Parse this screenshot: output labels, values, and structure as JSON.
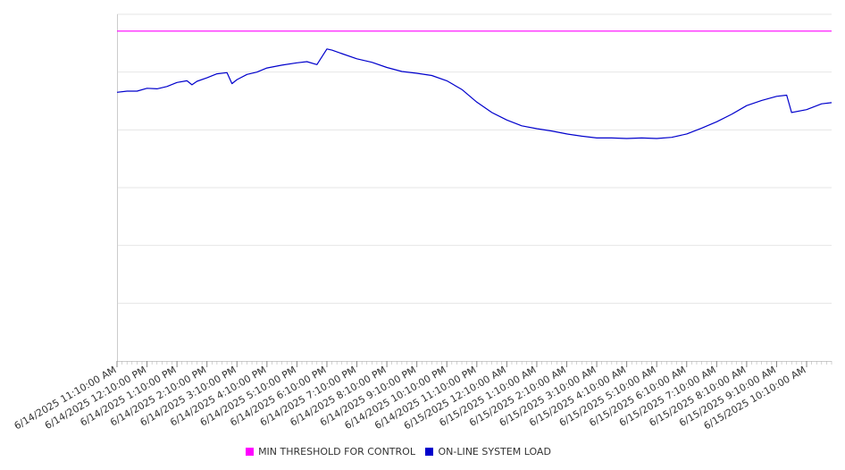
{
  "chart_data": {
    "type": "line",
    "title": "",
    "xlabel": "",
    "ylabel": "",
    "grid": true,
    "legend_position": "bottom-center",
    "x_tick_labels": [
      "6/14/2025 11:10:00 AM",
      "6/14/2025 12:10:00 PM",
      "6/14/2025 1:10:00 PM",
      "6/14/2025 2:10:00 PM",
      "6/14/2025 3:10:00 PM",
      "6/14/2025 4:10:00 PM",
      "6/14/2025 5:10:00 PM",
      "6/14/2025 6:10:00 PM",
      "6/14/2025 7:10:00 PM",
      "6/14/2025 8:10:00 PM",
      "6/14/2025 9:10:00 PM",
      "6/14/2025 10:10:00 PM",
      "6/14/2025 11:10:00 PM",
      "6/15/2025 12:10:00 AM",
      "6/15/2025 1:10:00 AM",
      "6/15/2025 2:10:00 AM",
      "6/15/2025 3:10:00 AM",
      "6/15/2025 4:10:00 AM",
      "6/15/2025 5:10:00 AM",
      "6/15/2025 6:10:00 AM",
      "6/15/2025 7:10:00 AM",
      "6/15/2025 8:10:00 AM",
      "6/15/2025 9:10:00 AM",
      "6/15/2025 10:10:00 AM"
    ],
    "x_range": [
      "6/14/2025 11:10:00 AM",
      "6/15/2025 11:00:00 AM"
    ],
    "y_range": [
      0,
      6
    ],
    "series": [
      {
        "name": "MIN THRESHOLD FOR CONTROL",
        "color": "#ff00ff",
        "x": [
          "6/14/2025 11:10:00 AM",
          "6/15/2025 11:00:00 AM"
        ],
        "y": [
          5.71,
          5.71
        ]
      },
      {
        "name": "ON-LINE SYSTEM LOAD",
        "color": "#0000cc",
        "x": [
          "6/14/2025 11:10:00 AM",
          "6/14/2025 11:30:00 AM",
          "6/14/2025 11:50:00 AM",
          "6/14/2025 12:10:00 PM",
          "6/14/2025 12:30:00 PM",
          "6/14/2025 12:50:00 PM",
          "6/14/2025 1:10:00 PM",
          "6/14/2025 1:30:00 PM",
          "6/14/2025 1:40:00 PM",
          "6/14/2025 1:50:00 PM",
          "6/14/2025 2:10:00 PM",
          "6/14/2025 2:30:00 PM",
          "6/14/2025 2:50:00 PM",
          "6/14/2025 3:00:00 PM",
          "6/14/2025 3:10:00 PM",
          "6/14/2025 3:30:00 PM",
          "6/14/2025 3:50:00 PM",
          "6/14/2025 4:10:00 PM",
          "6/14/2025 4:40:00 PM",
          "6/14/2025 5:10:00 PM",
          "6/14/2025 5:30:00 PM",
          "6/14/2025 5:50:00 PM",
          "6/14/2025 6:10:00 PM",
          "6/14/2025 6:20:00 PM",
          "6/14/2025 6:40:00 PM",
          "6/14/2025 7:10:00 PM",
          "6/14/2025 7:40:00 PM",
          "6/14/2025 8:10:00 PM",
          "6/14/2025 8:40:00 PM",
          "6/14/2025 9:10:00 PM",
          "6/14/2025 9:40:00 PM",
          "6/14/2025 10:10:00 PM",
          "6/14/2025 10:40:00 PM",
          "6/14/2025 11:10:00 PM",
          "6/14/2025 11:40:00 PM",
          "6/15/2025 12:10:00 AM",
          "6/15/2025 12:40:00 AM",
          "6/15/2025 1:10:00 AM",
          "6/15/2025 1:40:00 AM",
          "6/15/2025 2:10:00 AM",
          "6/15/2025 2:40:00 AM",
          "6/15/2025 3:10:00 AM",
          "6/15/2025 3:40:00 AM",
          "6/15/2025 4:10:00 AM",
          "6/15/2025 4:40:00 AM",
          "6/15/2025 5:10:00 AM",
          "6/15/2025 5:40:00 AM",
          "6/15/2025 6:10:00 AM",
          "6/15/2025 6:40:00 AM",
          "6/15/2025 7:10:00 AM",
          "6/15/2025 7:40:00 AM",
          "6/15/2025 8:10:00 AM",
          "6/15/2025 8:40:00 AM",
          "6/15/2025 9:10:00 AM",
          "6/15/2025 9:30:00 AM",
          "6/15/2025 9:40:00 AM",
          "6/15/2025 10:10:00 AM",
          "6/15/2025 10:40:00 AM",
          "6/15/2025 11:00:00 AM"
        ],
        "y": [
          4.65,
          4.67,
          4.67,
          4.72,
          4.71,
          4.75,
          4.82,
          4.85,
          4.78,
          4.84,
          4.9,
          4.97,
          4.99,
          4.8,
          4.87,
          4.96,
          5.0,
          5.07,
          5.12,
          5.16,
          5.18,
          5.13,
          5.4,
          5.38,
          5.32,
          5.23,
          5.17,
          5.08,
          5.01,
          4.98,
          4.94,
          4.85,
          4.7,
          4.48,
          4.3,
          4.17,
          4.07,
          4.02,
          3.98,
          3.93,
          3.89,
          3.86,
          3.86,
          3.85,
          3.86,
          3.85,
          3.87,
          3.93,
          4.03,
          4.14,
          4.27,
          4.42,
          4.51,
          4.58,
          4.6,
          4.3,
          4.35,
          4.45,
          4.47
        ]
      }
    ]
  }
}
